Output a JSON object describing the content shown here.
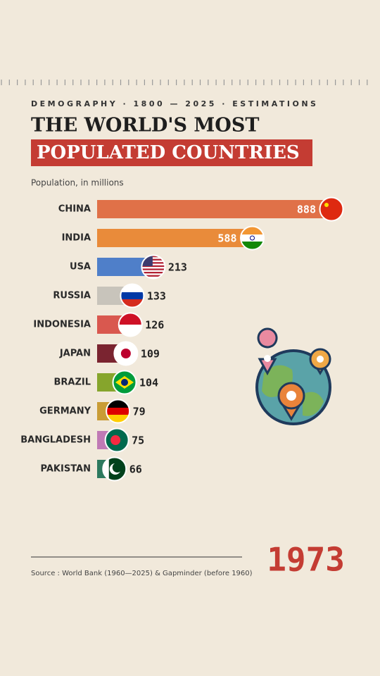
{
  "chart_data": {
    "type": "bar",
    "orientation": "horizontal",
    "kicker": "DEMOGRAPHY · 1800 — 2025 · ESTIMATIONS",
    "title": "THE WORLD'S MOST",
    "title_highlight": "POPULATED COUNTRIES",
    "subtitle": "Population, in millions",
    "categories": [
      "CHINA",
      "INDIA",
      "USA",
      "RUSSIA",
      "INDONESIA",
      "JAPAN",
      "BRAZIL",
      "GERMANY",
      "BANGLADESH",
      "PAKISTAN"
    ],
    "values": [
      888,
      588,
      213,
      133,
      126,
      109,
      104,
      79,
      75,
      66
    ],
    "colors": [
      "#e07148",
      "#e98b3a",
      "#4f7fc9",
      "#c8c4bb",
      "#d9584f",
      "#7a2430",
      "#86a52c",
      "#c99c35",
      "#c07ab5",
      "#2d7a5f"
    ],
    "year": 1973,
    "source": "Source : World Bank (1960—2025) & Gapminder (before 1960)"
  }
}
